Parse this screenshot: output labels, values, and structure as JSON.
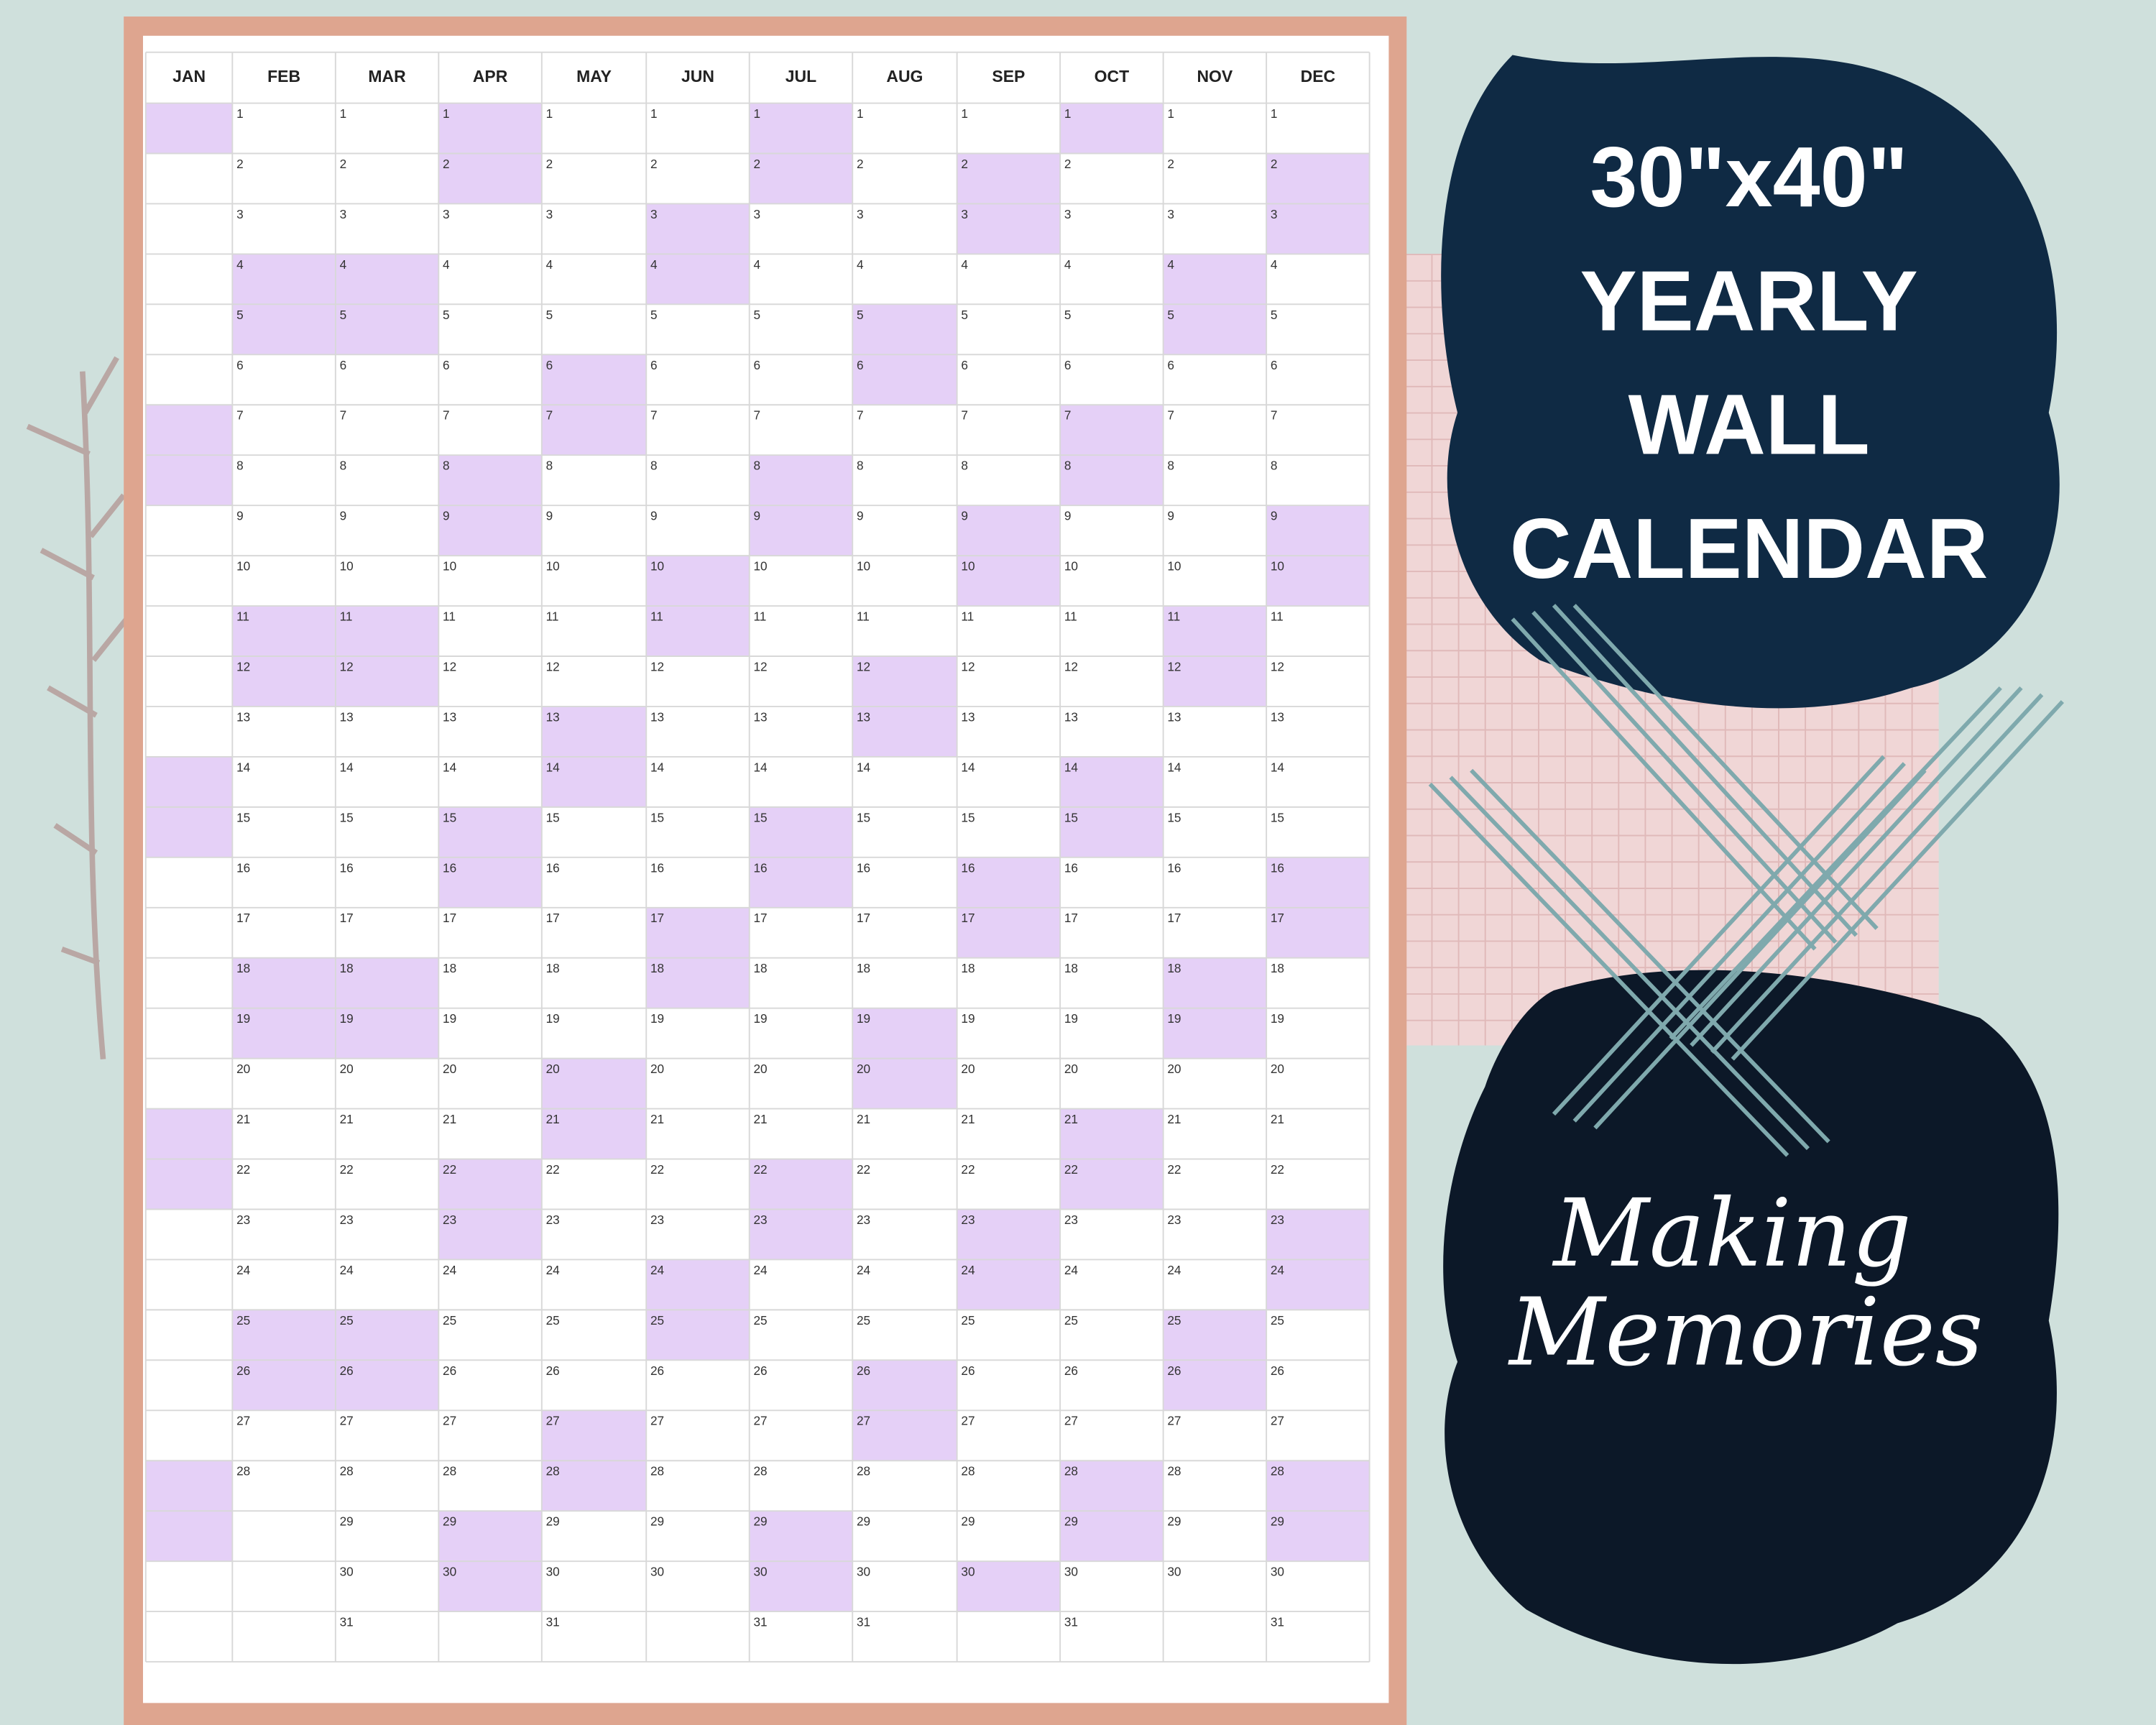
{
  "calendar": {
    "columns": [
      {
        "month": "JAN",
        "days": [],
        "shaded": [
          1,
          7,
          8,
          14,
          15,
          21,
          22,
          28,
          29
        ]
      },
      {
        "month": "FEB",
        "days": [
          1,
          2,
          3,
          4,
          5,
          6,
          7,
          8,
          9,
          10,
          11,
          12,
          13,
          14,
          15,
          16,
          17,
          18,
          19,
          20,
          21,
          22,
          23,
          24,
          25,
          26,
          27,
          28
        ],
        "shaded": [
          4,
          5,
          11,
          12,
          18,
          19,
          25,
          26
        ]
      },
      {
        "month": "MAR",
        "days": [
          1,
          2,
          3,
          4,
          5,
          6,
          7,
          8,
          9,
          10,
          11,
          12,
          13,
          14,
          15,
          16,
          17,
          18,
          19,
          20,
          21,
          22,
          23,
          24,
          25,
          26,
          27,
          28,
          29,
          30,
          31
        ],
        "shaded": [
          4,
          5,
          11,
          12,
          18,
          19,
          25,
          26
        ]
      },
      {
        "month": "APR",
        "days": [
          1,
          2,
          3,
          4,
          5,
          6,
          7,
          8,
          9,
          10,
          11,
          12,
          13,
          14,
          15,
          16,
          17,
          18,
          19,
          20,
          21,
          22,
          23,
          24,
          25,
          26,
          27,
          28,
          29,
          30
        ],
        "shaded": [
          1,
          2,
          8,
          9,
          15,
          16,
          22,
          23,
          29,
          30
        ]
      },
      {
        "month": "MAY",
        "days": [
          1,
          2,
          3,
          4,
          5,
          6,
          7,
          8,
          9,
          10,
          11,
          12,
          13,
          14,
          15,
          16,
          17,
          18,
          19,
          20,
          21,
          22,
          23,
          24,
          25,
          26,
          27,
          28,
          29,
          30,
          31
        ],
        "shaded": [
          6,
          7,
          13,
          14,
          20,
          21,
          27,
          28
        ]
      },
      {
        "month": "JUN",
        "days": [
          1,
          2,
          3,
          4,
          5,
          6,
          7,
          8,
          9,
          10,
          11,
          12,
          13,
          14,
          15,
          16,
          17,
          18,
          19,
          20,
          21,
          22,
          23,
          24,
          25,
          26,
          27,
          28,
          29,
          30
        ],
        "shaded": [
          3,
          4,
          10,
          11,
          17,
          18,
          24,
          25
        ]
      },
      {
        "month": "JUL",
        "days": [
          1,
          2,
          3,
          4,
          5,
          6,
          7,
          8,
          9,
          10,
          11,
          12,
          13,
          14,
          15,
          16,
          17,
          18,
          19,
          20,
          21,
          22,
          23,
          24,
          25,
          26,
          27,
          28,
          29,
          30,
          31
        ],
        "shaded": [
          1,
          2,
          8,
          9,
          15,
          16,
          22,
          23,
          29,
          30
        ]
      },
      {
        "month": "AUG",
        "days": [
          1,
          2,
          3,
          4,
          5,
          6,
          7,
          8,
          9,
          10,
          11,
          12,
          13,
          14,
          15,
          16,
          17,
          18,
          19,
          20,
          21,
          22,
          23,
          24,
          25,
          26,
          27,
          28,
          29,
          30,
          31
        ],
        "shaded": [
          5,
          6,
          12,
          13,
          19,
          20,
          26,
          27
        ]
      },
      {
        "month": "SEP",
        "days": [
          1,
          2,
          3,
          4,
          5,
          6,
          7,
          8,
          9,
          10,
          11,
          12,
          13,
          14,
          15,
          16,
          17,
          18,
          19,
          20,
          21,
          22,
          23,
          24,
          25,
          26,
          27,
          28,
          29,
          30
        ],
        "shaded": [
          2,
          3,
          9,
          10,
          16,
          17,
          23,
          24,
          30
        ]
      },
      {
        "month": "OCT",
        "days": [
          1,
          2,
          3,
          4,
          5,
          6,
          7,
          8,
          9,
          10,
          11,
          12,
          13,
          14,
          15,
          16,
          17,
          18,
          19,
          20,
          21,
          22,
          23,
          24,
          25,
          26,
          27,
          28,
          29,
          30,
          31
        ],
        "shaded": [
          1,
          7,
          8,
          14,
          15,
          21,
          22,
          28,
          29
        ]
      },
      {
        "month": "NOV",
        "days": [
          1,
          2,
          3,
          4,
          5,
          6,
          7,
          8,
          9,
          10,
          11,
          12,
          13,
          14,
          15,
          16,
          17,
          18,
          19,
          20,
          21,
          22,
          23,
          24,
          25,
          26,
          27,
          28,
          29,
          30
        ],
        "shaded": [
          4,
          5,
          11,
          12,
          18,
          19,
          25,
          26
        ]
      },
      {
        "month": "DEC",
        "days": [
          1,
          2,
          3,
          4,
          5,
          6,
          7,
          8,
          9,
          10,
          11,
          12,
          13,
          14,
          15,
          16,
          17,
          18,
          19,
          20,
          21,
          22,
          23,
          24,
          25,
          26,
          27,
          28,
          29,
          30,
          31
        ],
        "shaded": [
          2,
          3,
          9,
          10,
          16,
          17,
          23,
          24,
          28,
          29
        ]
      }
    ]
  },
  "banner": {
    "lines": [
      "30\"x40\"",
      "YEARLY",
      "WALL",
      "CALENDAR"
    ]
  },
  "tagline": {
    "lines": [
      "Making",
      "Memories"
    ]
  }
}
